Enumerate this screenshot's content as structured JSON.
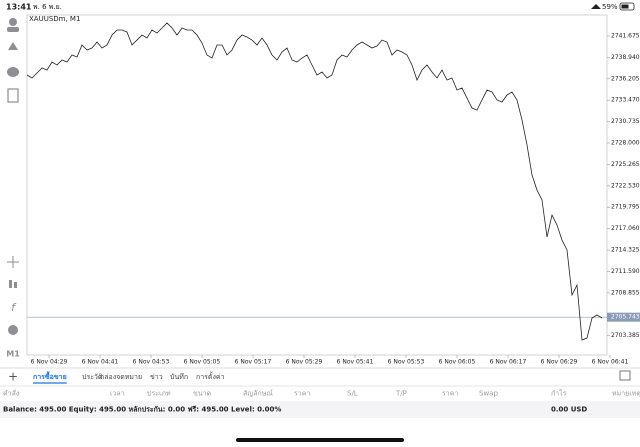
{
  "status_bar": {
    "time": "13:41",
    "date": "พ. 6 พ.ย.",
    "battery": "59%"
  },
  "chart_data": {
    "type": "line",
    "title": "XAUUSDm, M1",
    "color": "#222222",
    "values": [
      2736.69,
      2736.31,
      2736.95,
      2737.59,
      2737.33,
      2738.35,
      2737.97,
      2738.61,
      2738.35,
      2739.25,
      2738.99,
      2740.53,
      2739.89,
      2740.14,
      2740.91,
      2740.14,
      2740.53,
      2741.8,
      2742.44,
      2742.44,
      2742.19,
      2740.53,
      2741.16,
      2741.8,
      2741.42,
      2742.44,
      2742.06,
      2742.7,
      2743.34,
      2742.7,
      2741.8,
      2742.7,
      2742.44,
      2742.44,
      2741.8,
      2740.78,
      2739.25,
      2738.86,
      2740.53,
      2740.53,
      2739.25,
      2739.89,
      2741.16,
      2741.8,
      2741.55,
      2741.16,
      2740.53,
      2741.42,
      2740.53,
      2739.25,
      2738.61,
      2739.63,
      2740.14,
      2738.61,
      2738.35,
      2738.86,
      2739.25,
      2737.97,
      2736.69,
      2737.07,
      2736.31,
      2736.69,
      2738.61,
      2739.25,
      2738.99,
      2739.89,
      2740.53,
      2740.91,
      2740.53,
      2740.14,
      2740.4,
      2741.16,
      2740.91,
      2739.25,
      2739.89,
      2739.63,
      2739.25,
      2737.97,
      2736.05,
      2737.33,
      2737.97,
      2737.07,
      2736.31,
      2737.33,
      2736.05,
      2736.31,
      2734.77,
      2735.03,
      2733.75,
      2732.47,
      2732.22,
      2733.5,
      2734.77,
      2734.52,
      2733.5,
      2733.24,
      2734.14,
      2734.52,
      2733.5,
      2730.94,
      2727.75,
      2723.91,
      2721.99,
      2720.72,
      2715.99,
      2718.8,
      2717.52,
      2715.6,
      2714.33,
      2708.58,
      2709.85,
      2702.82,
      2703.08,
      2705.64,
      2706.02,
      2705.64
    ],
    "xlim": [
      0,
      116.6
    ],
    "xticks": [
      {
        "value": 4.4,
        "label": "6 Nov 04:29"
      },
      {
        "value": 14.6,
        "label": "6 Nov 04:41"
      },
      {
        "value": 24.8,
        "label": "6 Nov 04:53"
      },
      {
        "value": 35,
        "label": "6 Nov 05:05"
      },
      {
        "value": 45.2,
        "label": "6 Nov 05:17"
      },
      {
        "value": 55.4,
        "label": "6 Nov 05:29"
      },
      {
        "value": 65.6,
        "label": "6 Nov 05:41"
      },
      {
        "value": 75.8,
        "label": "6 Nov 05:53"
      },
      {
        "value": 86,
        "label": "6 Nov 06:05"
      },
      {
        "value": 96.2,
        "label": "6 Nov 06:17"
      },
      {
        "value": 106.4,
        "label": "6 Nov 06:29"
      },
      {
        "value": 116.6,
        "label": "6 Nov 06:41"
      }
    ],
    "ylim": [
      2700.91,
      2744.36
    ],
    "yticks": [
      2741.675,
      {
        "value": 2738.94,
        "label": "2738.940"
      },
      2736.205,
      {
        "value": 2733.47,
        "label": "2733.470"
      },
      2730.735,
      {
        "value": 2728,
        "label": "2728.000"
      },
      2725.265,
      {
        "value": 2722.53,
        "label": "2722.530"
      },
      2719.795,
      {
        "value": 2717.06,
        "label": "2717.060"
      },
      2714.325,
      {
        "value": 2711.59,
        "label": "2711.590"
      },
      2708.855,
      2703.385
    ],
    "current_price": 2705.743,
    "current_price_color": "#8a9bb8"
  },
  "toolbar": {
    "timeframe": "M1"
  },
  "tabs": [
    "การซื้อขาย",
    "ประวัติ",
    "กล่องจดหมาย",
    "ข่าว",
    "บันทึก",
    "การตั้งค่า"
  ],
  "active_tab": 0,
  "table": {
    "headers": [
      "คำสั่ง",
      "เวลา",
      "ประเภท",
      "ขนาด",
      "สัญลักษณ์",
      "ราคา",
      "S/L",
      "T/P",
      "ราคา",
      "Swap",
      "กำไร",
      "หมายเหตุ"
    ]
  },
  "account": {
    "summary": "Balance: 495.00 Equity: 495.00 หลักประกัน: 0.00 ฟรี: 495.00 Level: 0.00%",
    "total": "0.00  USD"
  }
}
